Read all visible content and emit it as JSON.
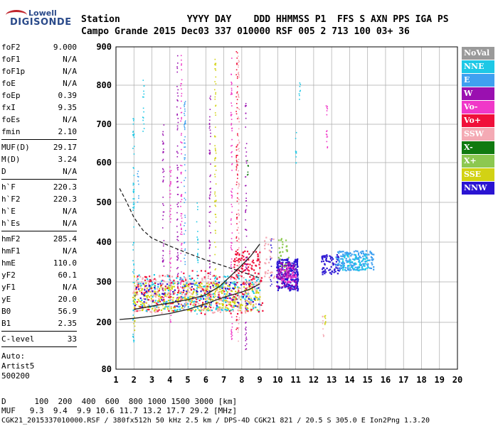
{
  "logo": {
    "line1": "Lowell",
    "line2": "DIGISONDE"
  },
  "header": {
    "labels": "Station            YYYY DAY    DDD HHMMSS P1  FFS S AXN PPS IGA PS",
    "values": "Campo Grande 2015 Dec03 337 010000 RSF 005 2 713 100 03+ 36"
  },
  "params": {
    "group1": [
      [
        "foF2",
        "9.000"
      ],
      [
        "foF1",
        "N/A"
      ],
      [
        "foF1p",
        "N/A"
      ],
      [
        "foE",
        "N/A"
      ],
      [
        "foEp",
        "0.39"
      ],
      [
        "fxI",
        "9.35"
      ],
      [
        "foEs",
        "N/A"
      ],
      [
        "fmin",
        "2.10"
      ]
    ],
    "group2": [
      [
        "MUF(D)",
        "29.17"
      ],
      [
        "M(D)",
        "3.24"
      ],
      [
        "D",
        "N/A"
      ]
    ],
    "group3": [
      [
        "h`F",
        "220.3"
      ],
      [
        "h`F2",
        "220.3"
      ],
      [
        "h`E",
        "N/A"
      ],
      [
        "h`Es",
        "N/A"
      ]
    ],
    "group4": [
      [
        "hmF2",
        "285.4"
      ],
      [
        "hmF1",
        "N/A"
      ],
      [
        "hmE",
        "110.0"
      ],
      [
        "yF2",
        "60.1"
      ],
      [
        "yF1",
        "N/A"
      ],
      [
        "yE",
        "20.0"
      ],
      [
        "B0",
        "56.9"
      ],
      [
        "B1",
        "2.35"
      ]
    ],
    "group5": [
      [
        "C-level",
        "33"
      ]
    ],
    "auto": [
      "Auto:",
      "Artist5",
      "500200"
    ]
  },
  "legend": [
    {
      "label": "NoVal",
      "color": "#9a9a9a"
    },
    {
      "label": "NNE",
      "color": "#1ec8e6"
    },
    {
      "label": "E",
      "color": "#3fa0f0"
    },
    {
      "label": "W",
      "color": "#9a10b0"
    },
    {
      "label": "Vo-",
      "color": "#f038c8"
    },
    {
      "label": "Vo+",
      "color": "#f0103a"
    },
    {
      "label": "SSW",
      "color": "#f4aab4"
    },
    {
      "label": "X-",
      "color": "#107a10"
    },
    {
      "label": "X+",
      "color": "#8cc850"
    },
    {
      "label": "SSE",
      "color": "#d2d214"
    },
    {
      "label": "NNW",
      "color": "#2a14d2"
    }
  ],
  "footer": {
    "line1": "D      100  200  400  600  800 1000 1500 3000 [km]",
    "line2": "MUF   9.3  9.4  9.9 10.6 11.7 13.2 17.7 29.2 [MHz]",
    "line3": "CGK21_2015337010000.RSF / 380fx512h 50 kHz 2.5 km / DPS-4D CGK21 821 / 20.5 S 305.0 E Ion2Png 1.3.20"
  },
  "chart_data": {
    "type": "scatter",
    "xlim": [
      1,
      20
    ],
    "ylim": [
      80,
      900
    ],
    "x_ticks": [
      1,
      2,
      3,
      4,
      5,
      6,
      7,
      8,
      9,
      10,
      11,
      12,
      13,
      14,
      15,
      16,
      17,
      18,
      19,
      20
    ],
    "y_ticks": [
      80,
      200,
      300,
      400,
      500,
      600,
      700,
      800,
      900
    ],
    "grid": true,
    "lines": [
      {
        "name": "",
        "style": "solid",
        "points": [
          [
            1.2,
            207
          ],
          [
            2,
            210
          ],
          [
            3,
            215
          ],
          [
            4,
            222
          ],
          [
            5,
            232
          ],
          [
            6,
            246
          ],
          [
            7,
            262
          ],
          [
            8,
            275
          ],
          [
            8.5,
            283
          ],
          [
            9,
            295
          ]
        ]
      },
      {
        "name": "",
        "style": "solid",
        "points": [
          [
            2,
            232
          ],
          [
            3,
            240
          ],
          [
            4,
            248
          ],
          [
            5,
            256
          ],
          [
            6,
            268
          ],
          [
            6.8,
            290
          ],
          [
            7.5,
            320
          ],
          [
            8,
            342
          ],
          [
            8.5,
            365
          ],
          [
            9,
            395
          ]
        ]
      },
      {
        "name": "",
        "style": "dashed",
        "points": [
          [
            1.2,
            535
          ],
          [
            1.6,
            500
          ],
          [
            2,
            462
          ],
          [
            2.5,
            430
          ],
          [
            3,
            410
          ],
          [
            4,
            390
          ],
          [
            5,
            372
          ],
          [
            6,
            355
          ],
          [
            7,
            340
          ],
          [
            8,
            325
          ],
          [
            9,
            310
          ]
        ]
      }
    ],
    "clusters": [
      {
        "series": "SSE",
        "x": [
          1.9,
          9.0
        ],
        "y": [
          230,
          300
        ],
        "n": 420
      },
      {
        "series": "SSW",
        "x": [
          1.9,
          9.0
        ],
        "y": [
          225,
          320
        ],
        "n": 260
      },
      {
        "series": "NNE",
        "x": [
          1.9,
          9.0
        ],
        "y": [
          230,
          320
        ],
        "n": 200
      },
      {
        "series": "Vo+",
        "x": [
          2.0,
          9.2
        ],
        "y": [
          220,
          330
        ],
        "n": 160
      },
      {
        "series": "NNW",
        "x": [
          2.0,
          9.0
        ],
        "y": [
          240,
          300
        ],
        "n": 90
      },
      {
        "series": "NNW",
        "x": [
          9.9,
          11.1
        ],
        "y": [
          280,
          360
        ],
        "n": 240
      },
      {
        "series": "W",
        "x": [
          9.9,
          11.0
        ],
        "y": [
          285,
          350
        ],
        "n": 90
      },
      {
        "series": "Vo-",
        "x": [
          10.0,
          11.0
        ],
        "y": [
          300,
          340
        ],
        "n": 40
      },
      {
        "series": "NNW",
        "x": [
          12.4,
          13.4
        ],
        "y": [
          320,
          370
        ],
        "n": 70
      },
      {
        "series": "E",
        "x": [
          13.2,
          15.3
        ],
        "y": [
          330,
          380
        ],
        "n": 170
      },
      {
        "series": "NNE",
        "x": [
          13.5,
          15.0
        ],
        "y": [
          330,
          370
        ],
        "n": 60
      },
      {
        "series": "Vo+",
        "x": [
          7.5,
          9.0
        ],
        "y": [
          320,
          380
        ],
        "n": 80
      },
      {
        "series": "X+",
        "x": [
          10.0,
          10.6
        ],
        "y": [
          330,
          420
        ],
        "n": 25
      },
      {
        "series": "SSW",
        "x": [
          9.2,
          9.8
        ],
        "y": [
          300,
          420
        ],
        "n": 30
      }
    ],
    "vertical_streaks": [
      {
        "series": "NNE",
        "x": 1.95,
        "y": [
          150,
          720
        ]
      },
      {
        "series": "SSE",
        "x": 2.0,
        "y": [
          180,
          320
        ]
      },
      {
        "series": "NNE",
        "x": 2.5,
        "y": [
          680,
          820
        ]
      },
      {
        "series": "E",
        "x": 2.2,
        "y": [
          500,
          580
        ]
      },
      {
        "series": "W",
        "x": 3.6,
        "y": [
          250,
          700
        ]
      },
      {
        "series": "Vo-",
        "x": 4.0,
        "y": [
          200,
          600
        ]
      },
      {
        "series": "W",
        "x": 4.4,
        "y": [
          240,
          880
        ]
      },
      {
        "series": "Vo-",
        "x": 4.6,
        "y": [
          240,
          880
        ]
      },
      {
        "series": "E",
        "x": 4.8,
        "y": [
          220,
          780
        ]
      },
      {
        "series": "NNE",
        "x": 5.5,
        "y": [
          220,
          520
        ]
      },
      {
        "series": "W",
        "x": 6.2,
        "y": [
          230,
          780
        ]
      },
      {
        "series": "SSE",
        "x": 6.5,
        "y": [
          260,
          880
        ]
      },
      {
        "series": "Vo-",
        "x": 7.4,
        "y": [
          150,
          880
        ]
      },
      {
        "series": "Vo+",
        "x": 7.7,
        "y": [
          180,
          900
        ]
      },
      {
        "series": "SSW",
        "x": 7.8,
        "y": [
          150,
          880
        ]
      },
      {
        "series": "W",
        "x": 8.2,
        "y": [
          130,
          760
        ]
      },
      {
        "series": "X-",
        "x": 8.3,
        "y": [
          570,
          610
        ]
      },
      {
        "series": "NNE",
        "x": 11.2,
        "y": [
          760,
          810
        ]
      },
      {
        "series": "NNE",
        "x": 11.0,
        "y": [
          600,
          690
        ]
      },
      {
        "series": "SSW",
        "x": 12.5,
        "y": [
          150,
          230
        ]
      },
      {
        "series": "Vo-",
        "x": 12.7,
        "y": [
          620,
          760
        ]
      },
      {
        "series": "SSE",
        "x": 12.6,
        "y": [
          190,
          220
        ]
      },
      {
        "series": "NNW",
        "x": 9.6,
        "y": [
          280,
          420
        ]
      }
    ]
  }
}
